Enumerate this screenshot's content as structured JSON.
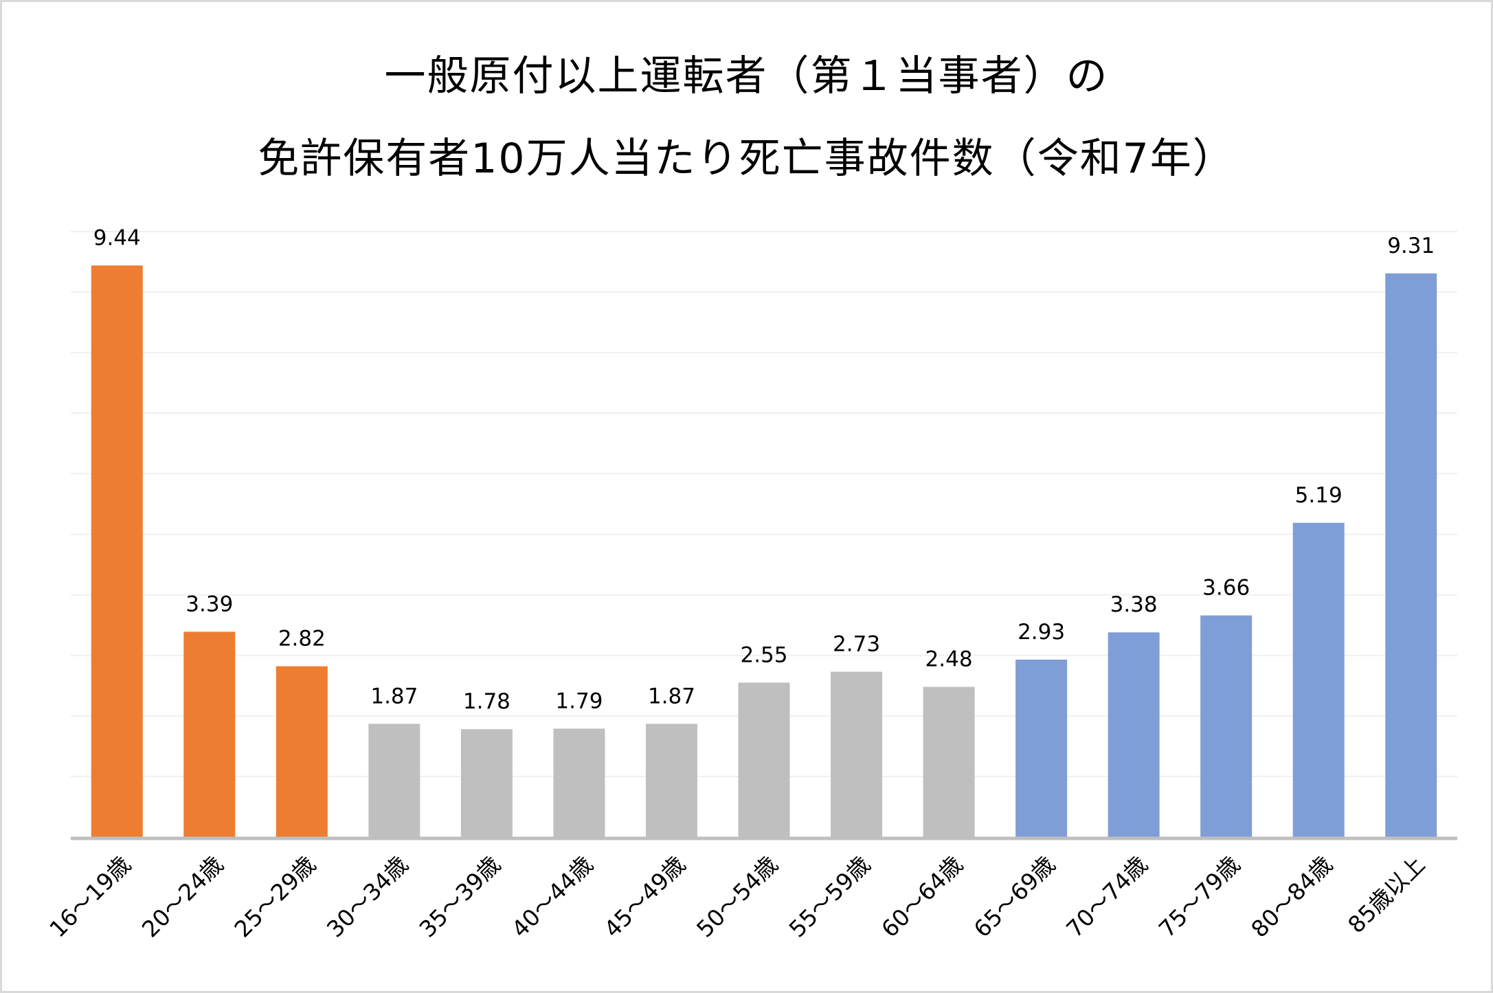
{
  "chart_data": {
    "type": "bar",
    "title": [
      "一般原付以上運転者（第１当事者）の",
      "免許保有者10万人当たり死亡事故件数（令和7年）"
    ],
    "xlabel": "",
    "ylabel": "",
    "ylim": [
      0,
      10
    ],
    "grid": true,
    "grid_step": 1,
    "y_tick_labels_shown": false,
    "legend": "none",
    "categories": [
      "16～19歳",
      "20～24歳",
      "25～29歳",
      "30～34歳",
      "35～39歳",
      "40～44歳",
      "45～49歳",
      "50～54歳",
      "55～59歳",
      "60～64歳",
      "65～69歳",
      "70～74歳",
      "75～79歳",
      "80～84歳",
      "85歳以上"
    ],
    "values": [
      9.44,
      3.39,
      2.82,
      1.87,
      1.78,
      1.79,
      1.87,
      2.55,
      2.73,
      2.48,
      2.93,
      3.38,
      3.66,
      5.19,
      9.31
    ],
    "data_labels": [
      "9.44",
      "3.39",
      "2.82",
      "1.87",
      "1.78",
      "1.79",
      "1.87",
      "2.55",
      "2.73",
      "2.48",
      "2.93",
      "3.38",
      "3.66",
      "5.19",
      "9.31"
    ],
    "bar_colors": [
      "#ED7D31",
      "#ED7D31",
      "#ED7D31",
      "#BFBFBF",
      "#BFBFBF",
      "#BFBFBF",
      "#BFBFBF",
      "#BFBFBF",
      "#BFBFBF",
      "#BFBFBF",
      "#7F9ED7",
      "#7F9ED7",
      "#7F9ED7",
      "#7F9ED7",
      "#7F9ED7"
    ],
    "colors": {
      "young": "#ED7D31",
      "middle": "#BFBFBF",
      "elderly": "#7F9ED7",
      "gridline": "#F0F0F0",
      "axis": "#BFBFBF"
    }
  }
}
